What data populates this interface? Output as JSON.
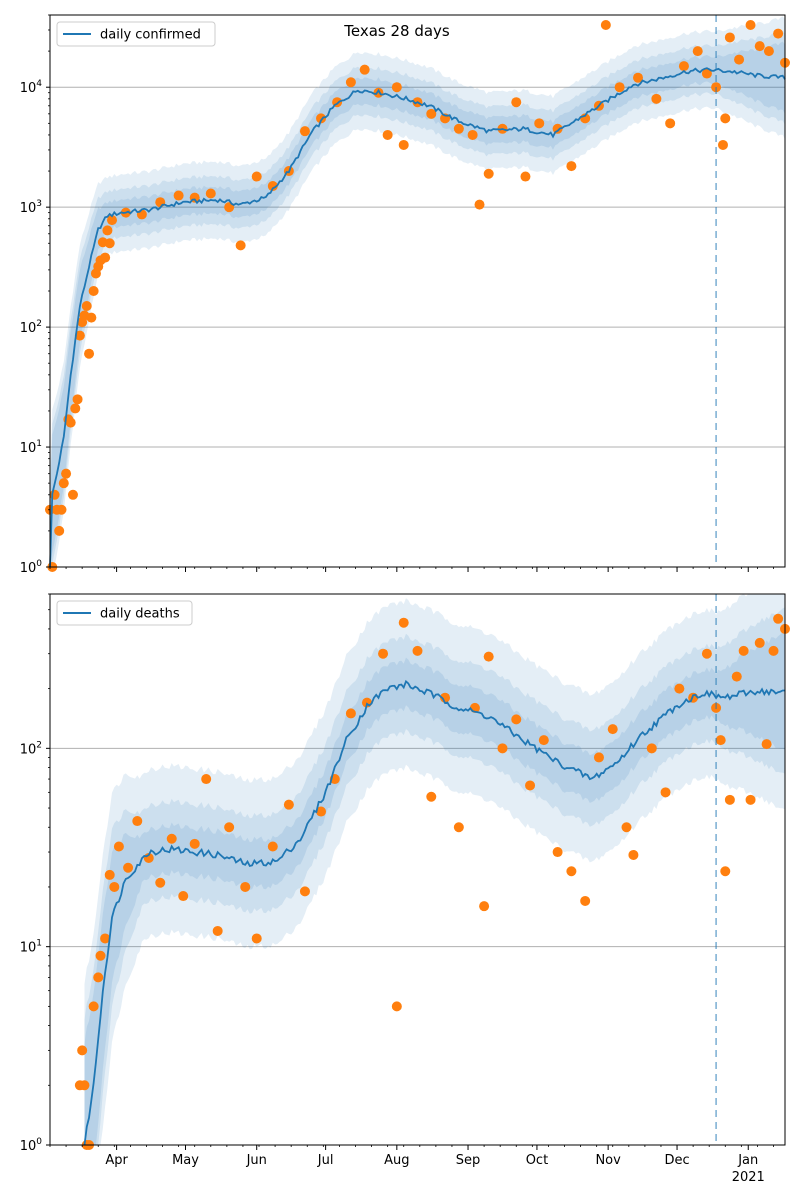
{
  "figure": {
    "title": "Texas 28 days"
  },
  "colors": {
    "model_line": "#1f77b4",
    "band": "#1f77b4",
    "observed_points": "#ff7f0e",
    "forecast_marker": "#1f77b4",
    "grid": "#b0b0b0"
  },
  "chart_data": [
    {
      "type": "scatter",
      "title": "Texas 28 days",
      "y_scale": "log",
      "ylim": [
        1,
        40000
      ],
      "y_ticks": [
        1,
        10,
        100,
        1000,
        10000
      ],
      "y_tick_labels": [
        "10^0",
        "10^1",
        "10^2",
        "10^3",
        "10^4"
      ],
      "x_range": [
        "2020-03-03",
        "2021-01-17"
      ],
      "x_tick_labels": [
        "",
        "",
        "",
        "",
        "",
        "",
        "",
        "",
        "",
        "",
        ""
      ],
      "grid": "horizontal",
      "legend": {
        "position": "top-left",
        "entries": [
          "daily confirmed"
        ]
      },
      "forecast_start": "2020-12-18",
      "series": [
        {
          "name": "daily confirmed",
          "kind": "model-median",
          "anchors": [
            [
              "2020-03-03",
              1
            ],
            [
              "2020-03-04",
              4
            ],
            [
              "2020-03-06",
              6
            ],
            [
              "2020-03-09",
              12
            ],
            [
              "2020-03-12",
              40
            ],
            [
              "2020-03-16",
              150
            ],
            [
              "2020-03-20",
              320
            ],
            [
              "2020-03-24",
              650
            ],
            [
              "2020-03-28",
              850
            ],
            [
              "2020-04-03",
              900
            ],
            [
              "2020-04-15",
              950
            ],
            [
              "2020-04-30",
              1100
            ],
            [
              "2020-05-15",
              1150
            ],
            [
              "2020-05-25",
              1050
            ],
            [
              "2020-06-05",
              1200
            ],
            [
              "2020-06-15",
              2000
            ],
            [
              "2020-06-25",
              4200
            ],
            [
              "2020-07-05",
              7000
            ],
            [
              "2020-07-15",
              9500
            ],
            [
              "2020-07-25",
              9000
            ],
            [
              "2020-08-05",
              8000
            ],
            [
              "2020-08-15",
              7000
            ],
            [
              "2020-08-28",
              5200
            ],
            [
              "2020-09-10",
              4300
            ],
            [
              "2020-09-25",
              4500
            ],
            [
              "2020-10-08",
              4000
            ],
            [
              "2020-10-20",
              5600
            ],
            [
              "2020-11-01",
              7800
            ],
            [
              "2020-11-12",
              10500
            ],
            [
              "2020-11-25",
              12000
            ],
            [
              "2020-12-05",
              13500
            ],
            [
              "2020-12-15",
              14000
            ],
            [
              "2020-12-25",
              13500
            ],
            [
              "2021-01-05",
              12500
            ],
            [
              "2021-01-17",
              12000
            ]
          ]
        },
        {
          "name": "",
          "kind": "observed",
          "points": [
            [
              "2020-03-03",
              3
            ],
            [
              "2020-03-04",
              1
            ],
            [
              "2020-03-05",
              4
            ],
            [
              "2020-03-06",
              3
            ],
            [
              "2020-03-07",
              2
            ],
            [
              "2020-03-08",
              3
            ],
            [
              "2020-03-09",
              5
            ],
            [
              "2020-03-10",
              6
            ],
            [
              "2020-03-11",
              17
            ],
            [
              "2020-03-12",
              16
            ],
            [
              "2020-03-13",
              4
            ],
            [
              "2020-03-14",
              21
            ],
            [
              "2020-03-15",
              25
            ],
            [
              "2020-03-16",
              85
            ],
            [
              "2020-03-17",
              110
            ],
            [
              "2020-03-18",
              125
            ],
            [
              "2020-03-19",
              150
            ],
            [
              "2020-03-20",
              60
            ],
            [
              "2020-03-21",
              120
            ],
            [
              "2020-03-22",
              200
            ],
            [
              "2020-03-23",
              280
            ],
            [
              "2020-03-24",
              320
            ],
            [
              "2020-03-25",
              360
            ],
            [
              "2020-03-26",
              510
            ],
            [
              "2020-03-27",
              380
            ],
            [
              "2020-03-28",
              640
            ],
            [
              "2020-03-29",
              500
            ],
            [
              "2020-03-30",
              780
            ],
            [
              "2020-04-05",
              900
            ],
            [
              "2020-04-12",
              870
            ],
            [
              "2020-04-20",
              1100
            ],
            [
              "2020-04-28",
              1250
            ],
            [
              "2020-05-05",
              1200
            ],
            [
              "2020-05-12",
              1300
            ],
            [
              "2020-05-20",
              1000
            ],
            [
              "2020-05-25",
              480
            ],
            [
              "2020-06-01",
              1800
            ],
            [
              "2020-06-08",
              1500
            ],
            [
              "2020-06-15",
              2000
            ],
            [
              "2020-06-22",
              4300
            ],
            [
              "2020-06-29",
              5500
            ],
            [
              "2020-07-06",
              7500
            ],
            [
              "2020-07-12",
              11000
            ],
            [
              "2020-07-18",
              14000
            ],
            [
              "2020-07-24",
              9000
            ],
            [
              "2020-07-28",
              4000
            ],
            [
              "2020-08-01",
              10000
            ],
            [
              "2020-08-04",
              3300
            ],
            [
              "2020-08-10",
              7500
            ],
            [
              "2020-08-16",
              6000
            ],
            [
              "2020-08-22",
              5500
            ],
            [
              "2020-08-28",
              4500
            ],
            [
              "2020-09-03",
              4000
            ],
            [
              "2020-09-06",
              1050
            ],
            [
              "2020-09-10",
              1900
            ],
            [
              "2020-09-16",
              4500
            ],
            [
              "2020-09-22",
              7500
            ],
            [
              "2020-09-26",
              1800
            ],
            [
              "2020-10-02",
              5000
            ],
            [
              "2020-10-10",
              4500
            ],
            [
              "2020-10-16",
              2200
            ],
            [
              "2020-10-22",
              5500
            ],
            [
              "2020-10-28",
              7000
            ],
            [
              "2020-10-31",
              33000
            ],
            [
              "2020-11-06",
              10000
            ],
            [
              "2020-11-14",
              12000
            ],
            [
              "2020-11-22",
              8000
            ],
            [
              "2020-11-28",
              5000
            ],
            [
              "2020-12-04",
              15000
            ],
            [
              "2020-12-10",
              20000
            ],
            [
              "2020-12-14",
              13000
            ],
            [
              "2020-12-18",
              10000
            ],
            [
              "2020-12-21",
              3300
            ],
            [
              "2020-12-22",
              5500
            ],
            [
              "2020-12-24",
              26000
            ],
            [
              "2020-12-28",
              17000
            ],
            [
              "2021-01-02",
              33000
            ],
            [
              "2021-01-06",
              22000
            ],
            [
              "2021-01-10",
              20000
            ],
            [
              "2021-01-14",
              28000
            ],
            [
              "2021-01-17",
              16000
            ]
          ]
        }
      ]
    },
    {
      "type": "scatter",
      "title": "",
      "y_scale": "log",
      "ylim": [
        1,
        600
      ],
      "y_ticks": [
        1,
        10,
        100
      ],
      "y_tick_labels": [
        "10^0",
        "10^1",
        "10^2"
      ],
      "x_range": [
        "2020-03-03",
        "2021-01-17"
      ],
      "x_ticks": [
        "2020-04-01",
        "2020-05-01",
        "2020-06-01",
        "2020-07-01",
        "2020-08-01",
        "2020-09-01",
        "2020-10-01",
        "2020-11-01",
        "2020-12-01",
        "2021-01-01"
      ],
      "x_tick_labels": [
        "Apr",
        "May",
        "Jun",
        "Jul",
        "Aug",
        "Sep",
        "Oct",
        "Nov",
        "Dec",
        "Jan"
      ],
      "x_year_label": "2021",
      "grid": "horizontal",
      "legend": {
        "position": "top-left",
        "entries": [
          "daily deaths"
        ]
      },
      "forecast_start": "2020-12-18",
      "series": [
        {
          "name": "daily deaths",
          "kind": "model-median",
          "anchors": [
            [
              "2020-03-18",
              1
            ],
            [
              "2020-03-22",
              2
            ],
            [
              "2020-03-26",
              6
            ],
            [
              "2020-03-30",
              14
            ],
            [
              "2020-04-05",
              22
            ],
            [
              "2020-04-15",
              30
            ],
            [
              "2020-04-25",
              31
            ],
            [
              "2020-05-05",
              30
            ],
            [
              "2020-05-15",
              29
            ],
            [
              "2020-05-28",
              26
            ],
            [
              "2020-06-10",
              27
            ],
            [
              "2020-06-20",
              35
            ],
            [
              "2020-07-01",
              60
            ],
            [
              "2020-07-10",
              110
            ],
            [
              "2020-07-20",
              170
            ],
            [
              "2020-07-28",
              200
            ],
            [
              "2020-08-05",
              210
            ],
            [
              "2020-08-15",
              190
            ],
            [
              "2020-08-28",
              160
            ],
            [
              "2020-09-10",
              145
            ],
            [
              "2020-09-25",
              110
            ],
            [
              "2020-10-10",
              85
            ],
            [
              "2020-10-25",
              70
            ],
            [
              "2020-11-05",
              85
            ],
            [
              "2020-11-15",
              115
            ],
            [
              "2020-12-01",
              165
            ],
            [
              "2020-12-12",
              190
            ],
            [
              "2020-12-22",
              180
            ],
            [
              "2021-01-05",
              195
            ],
            [
              "2021-01-17",
              190
            ]
          ]
        },
        {
          "name": "",
          "kind": "observed",
          "points": [
            [
              "2020-03-16",
              2
            ],
            [
              "2020-03-17",
              3
            ],
            [
              "2020-03-18",
              2
            ],
            [
              "2020-03-19",
              1
            ],
            [
              "2020-03-20",
              1
            ],
            [
              "2020-03-22",
              5
            ],
            [
              "2020-03-24",
              7
            ],
            [
              "2020-03-25",
              9
            ],
            [
              "2020-03-27",
              11
            ],
            [
              "2020-03-29",
              23
            ],
            [
              "2020-03-31",
              20
            ],
            [
              "2020-04-02",
              32
            ],
            [
              "2020-04-06",
              25
            ],
            [
              "2020-04-10",
              43
            ],
            [
              "2020-04-15",
              28
            ],
            [
              "2020-04-20",
              21
            ],
            [
              "2020-04-25",
              35
            ],
            [
              "2020-04-30",
              18
            ],
            [
              "2020-05-05",
              33
            ],
            [
              "2020-05-10",
              70
            ],
            [
              "2020-05-15",
              12
            ],
            [
              "2020-05-20",
              40
            ],
            [
              "2020-05-27",
              20
            ],
            [
              "2020-06-01",
              11
            ],
            [
              "2020-06-08",
              32
            ],
            [
              "2020-06-15",
              52
            ],
            [
              "2020-06-22",
              19
            ],
            [
              "2020-06-29",
              48
            ],
            [
              "2020-07-05",
              70
            ],
            [
              "2020-07-12",
              150
            ],
            [
              "2020-07-19",
              170
            ],
            [
              "2020-07-26",
              300
            ],
            [
              "2020-08-01",
              5
            ],
            [
              "2020-08-04",
              430
            ],
            [
              "2020-08-10",
              310
            ],
            [
              "2020-08-16",
              57
            ],
            [
              "2020-08-22",
              180
            ],
            [
              "2020-08-28",
              40
            ],
            [
              "2020-09-04",
              160
            ],
            [
              "2020-09-08",
              16
            ],
            [
              "2020-09-10",
              290
            ],
            [
              "2020-09-16",
              100
            ],
            [
              "2020-09-22",
              140
            ],
            [
              "2020-09-28",
              65
            ],
            [
              "2020-10-04",
              110
            ],
            [
              "2020-10-10",
              30
            ],
            [
              "2020-10-16",
              24
            ],
            [
              "2020-10-22",
              17
            ],
            [
              "2020-10-28",
              90
            ],
            [
              "2020-11-03",
              125
            ],
            [
              "2020-11-09",
              40
            ],
            [
              "2020-11-12",
              29
            ],
            [
              "2020-11-20",
              100
            ],
            [
              "2020-11-26",
              60
            ],
            [
              "2020-12-02",
              200
            ],
            [
              "2020-12-08",
              180
            ],
            [
              "2020-12-14",
              300
            ],
            [
              "2020-12-18",
              160
            ],
            [
              "2020-12-20",
              110
            ],
            [
              "2020-12-22",
              24
            ],
            [
              "2020-12-24",
              55
            ],
            [
              "2020-12-27",
              230
            ],
            [
              "2020-12-30",
              310
            ],
            [
              "2021-01-02",
              55
            ],
            [
              "2021-01-06",
              340
            ],
            [
              "2021-01-09",
              105
            ],
            [
              "2021-01-12",
              310
            ],
            [
              "2021-01-14",
              450
            ],
            [
              "2021-01-17",
              400
            ]
          ]
        }
      ]
    }
  ]
}
